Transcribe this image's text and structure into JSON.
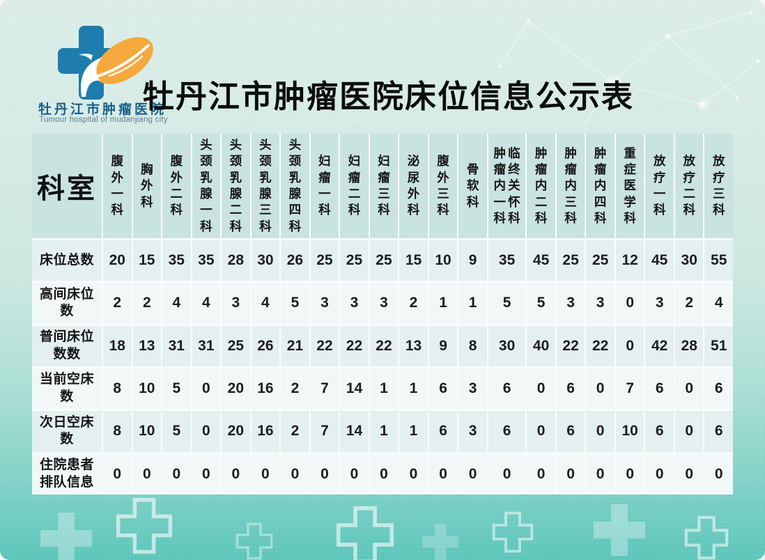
{
  "page": {
    "title": "牡丹江市肿瘤医院床位信息公示表"
  },
  "branding": {
    "hospital_name_cn": "牡丹江市肿瘤医院",
    "hospital_name_en": "Tumour hospital of mudanjiang city",
    "logo_cross_color": "#1e7dad",
    "logo_leaf_color": "#f5a83b"
  },
  "table": {
    "corner_header": "科室",
    "columns": [
      [
        "腹外一科"
      ],
      [
        "胸外科"
      ],
      [
        "腹外二科"
      ],
      [
        "头颈乳腺一科"
      ],
      [
        "头颈乳腺二科"
      ],
      [
        "头颈乳腺三科"
      ],
      [
        "头颈乳腺四科"
      ],
      [
        "妇瘤一科"
      ],
      [
        "妇瘤二科"
      ],
      [
        "妇瘤三科"
      ],
      [
        "泌尿外科"
      ],
      [
        "腹外三科"
      ],
      [
        "骨软科"
      ],
      [
        "肿瘤内一科",
        "临终关怀科"
      ],
      [
        "肿瘤内二科"
      ],
      [
        "肿瘤内三科"
      ],
      [
        "肿瘤内四科"
      ],
      [
        "重症医学科"
      ],
      [
        "放疗一科"
      ],
      [
        "放疗二科"
      ],
      [
        "放疗三科"
      ]
    ],
    "rows": [
      {
        "label": "床位总数",
        "values": [
          20,
          15,
          35,
          35,
          28,
          30,
          26,
          25,
          25,
          25,
          15,
          10,
          9,
          35,
          45,
          25,
          25,
          12,
          45,
          30,
          55
        ]
      },
      {
        "label": "高间床位数",
        "values": [
          2,
          2,
          4,
          4,
          3,
          4,
          5,
          3,
          3,
          3,
          2,
          1,
          1,
          5,
          5,
          3,
          3,
          0,
          3,
          2,
          4
        ]
      },
      {
        "label": "普间床位数数",
        "values": [
          18,
          13,
          31,
          31,
          25,
          26,
          21,
          22,
          22,
          22,
          13,
          9,
          8,
          30,
          40,
          22,
          22,
          0,
          42,
          28,
          51
        ]
      },
      {
        "label": "当前空床数",
        "values": [
          8,
          10,
          5,
          0,
          20,
          16,
          2,
          7,
          14,
          1,
          1,
          6,
          3,
          6,
          0,
          6,
          0,
          7,
          6,
          0,
          6
        ]
      },
      {
        "label": "次日空床数",
        "values": [
          8,
          10,
          5,
          0,
          20,
          16,
          2,
          7,
          14,
          1,
          1,
          6,
          3,
          6,
          0,
          6,
          0,
          10,
          6,
          0,
          6
        ]
      },
      {
        "label": "住院患者排队信息",
        "values": [
          0,
          0,
          0,
          0,
          0,
          0,
          0,
          0,
          0,
          0,
          0,
          0,
          0,
          0,
          0,
          0,
          0,
          0,
          0,
          0,
          0
        ]
      }
    ]
  },
  "colors": {
    "background_top": "#dcede9",
    "background_bottom": "#5cc5ba",
    "header_cell": "#c9e3e0",
    "row_odd": "#e4f0f0",
    "row_even": "#f1f8f7",
    "grid_line": "#ffffff",
    "text": "#141414",
    "hospital_name_color": "#1b6087"
  }
}
